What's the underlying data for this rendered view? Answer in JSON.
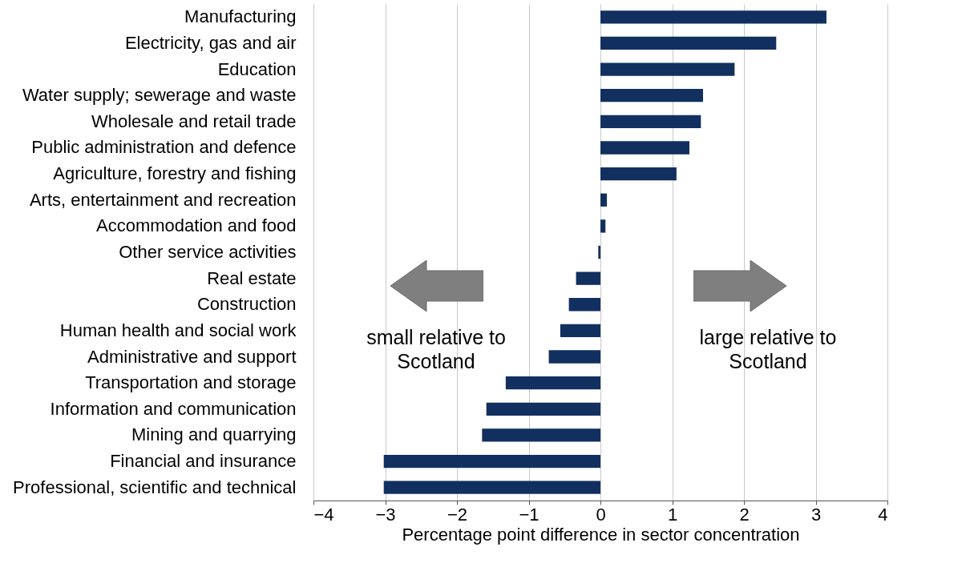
{
  "chart_data": {
    "type": "bar",
    "orientation": "horizontal",
    "xlabel": "Percentage point difference in sector concentration",
    "categories": [
      "Manufacturing",
      "Electricity, gas and air",
      "Education",
      "Water supply; sewerage and waste",
      "Wholesale and retail trade",
      "Public administration and defence",
      "Agriculture, forestry and fishing",
      "Arts, entertainment and recreation",
      "Accommodation and food",
      "Other service activities",
      "Real estate",
      "Construction",
      "Human health and social work",
      "Administrative and support",
      "Transportation and storage",
      "Information and communication",
      "Mining and quarrying",
      "Financial and insurance",
      "Professional, scientific and technical"
    ],
    "values": [
      3.15,
      2.45,
      1.87,
      1.43,
      1.4,
      1.24,
      1.06,
      0.09,
      0.07,
      -0.03,
      -0.34,
      -0.44,
      -0.56,
      -0.72,
      -1.32,
      -1.59,
      -1.65,
      -3.02,
      -3.02
    ],
    "color": "#11305f",
    "xlim": [
      -4,
      4
    ],
    "xticks": [
      -4,
      -3,
      -2,
      -1,
      0,
      1,
      2,
      3,
      4
    ],
    "grid": "x",
    "annotations": [
      "small relative to Scotland",
      "large relative to Scotland"
    ]
  }
}
